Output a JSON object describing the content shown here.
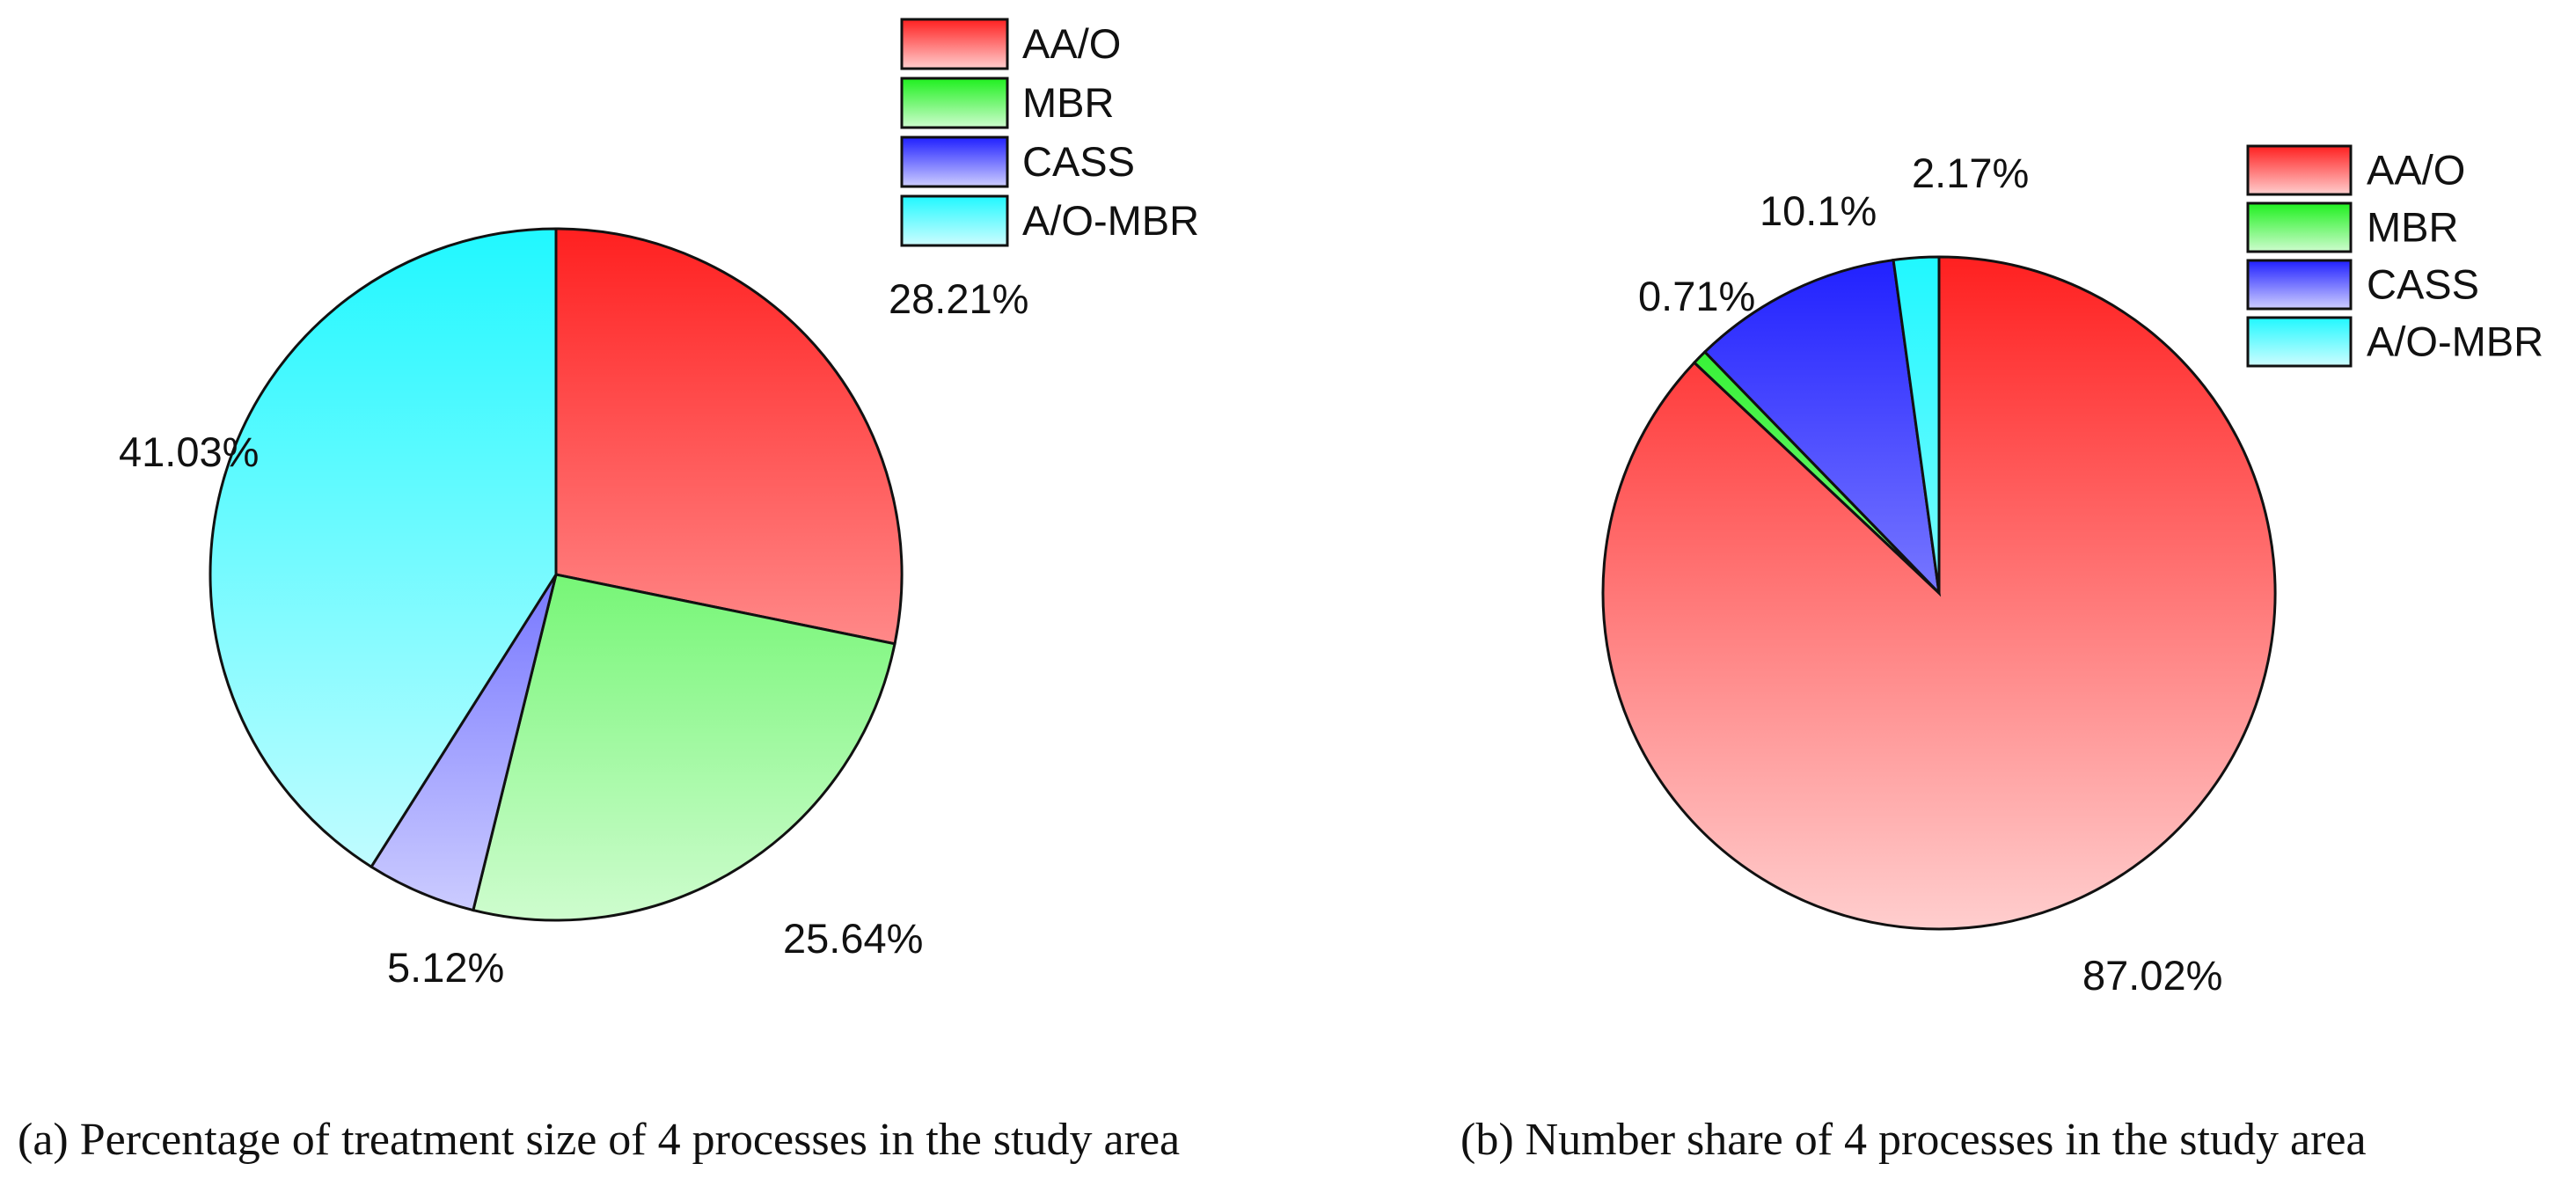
{
  "chart_data": [
    {
      "type": "pie",
      "caption": "(a) Percentage of treatment size of 4 processes in the study area",
      "categories": [
        "AA/O",
        "MBR",
        "CASS",
        "A/O-MBR"
      ],
      "values": [
        28.21,
        25.64,
        5.12,
        41.03
      ],
      "value_labels": [
        "28.21%",
        "25.64%",
        "5.12%",
        "41.03%"
      ],
      "colors": [
        "#ff2020",
        "#1ff01f",
        "#2020ff",
        "#20f8ff"
      ],
      "legend": [
        "AA/O",
        "MBR",
        "CASS",
        "A/O-MBR"
      ],
      "legend_position": "top-right",
      "start": "12 o'clock",
      "direction": "clockwise"
    },
    {
      "type": "pie",
      "caption": "(b) Number share of 4 processes in the study area",
      "categories": [
        "AA/O",
        "MBR",
        "CASS",
        "A/O-MBR"
      ],
      "values": [
        87.02,
        0.71,
        10.1,
        2.17
      ],
      "value_labels": [
        "87.02%",
        "0.71%",
        "10.1%",
        "2.17%"
      ],
      "colors": [
        "#ff2020",
        "#1ff01f",
        "#2020ff",
        "#20f8ff"
      ],
      "legend": [
        "AA/O",
        "MBR",
        "CASS",
        "A/O-MBR"
      ],
      "legend_position": "top-right",
      "start": "12 o'clock",
      "direction": "clockwise"
    }
  ]
}
